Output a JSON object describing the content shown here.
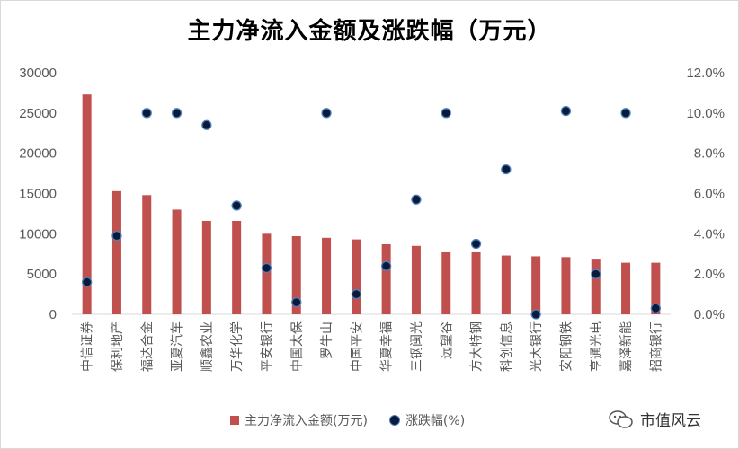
{
  "chart_data": {
    "type": "bar",
    "title": "主力净流入金额及涨跌幅（万元）",
    "categories": [
      "中信证券",
      "保利地产",
      "福达合金",
      "亚夏汽车",
      "顺鑫农业",
      "万华化学",
      "平安银行",
      "中国太保",
      "罗牛山",
      "中国平安",
      "华夏幸福",
      "三钢闽光",
      "远望谷",
      "方大特钢",
      "科创信息",
      "光大银行",
      "安阳钢铁",
      "亨通光电",
      "嘉泽新能",
      "招商银行"
    ],
    "series": [
      {
        "name": "主力净流入金额(万元)",
        "type": "bar",
        "axis": "left",
        "color": "#c0504d",
        "values": [
          27300,
          15300,
          14800,
          13000,
          11600,
          11600,
          10000,
          9700,
          9500,
          9300,
          8700,
          8500,
          7700,
          7700,
          7300,
          7200,
          7100,
          6900,
          6400,
          6400
        ]
      },
      {
        "name": "涨跌幅(%)",
        "type": "scatter",
        "axis": "right",
        "color": "#0a1a3a",
        "values": [
          1.6,
          3.9,
          10.0,
          10.0,
          9.4,
          5.4,
          2.3,
          0.6,
          10.0,
          1.0,
          2.4,
          5.7,
          10.0,
          3.5,
          7.2,
          0.0,
          10.1,
          2.0,
          10.0,
          0.3
        ]
      }
    ],
    "y_left": {
      "min": 0,
      "max": 30000,
      "ticks": [
        "0",
        "5000",
        "10000",
        "15000",
        "20000",
        "25000",
        "30000"
      ]
    },
    "y_right": {
      "min": 0,
      "max": 12,
      "ticks": [
        "0.0%",
        "2.0%",
        "4.0%",
        "6.0%",
        "8.0%",
        "10.0%",
        "12.0%"
      ]
    },
    "grid": false,
    "legend_position": "bottom"
  },
  "watermark": {
    "text": "市值风云",
    "icon": "wechat-icon"
  }
}
